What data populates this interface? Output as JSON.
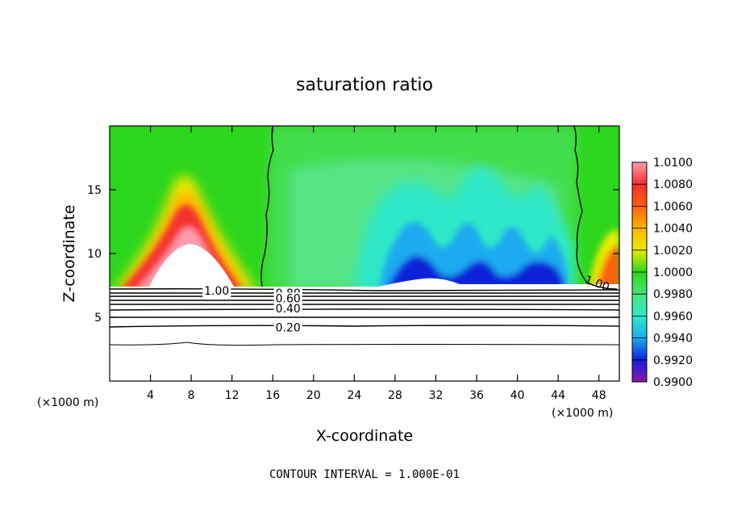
{
  "chart_data": {
    "type": "heatmap",
    "title": "saturation ratio",
    "xlabel": "X-coordinate",
    "ylabel": "Z-coordinate",
    "x_unit": "(×1000 m)",
    "x_unit_right": "(×1000 m)",
    "xlim": [
      0,
      50
    ],
    "ylim": [
      0,
      20
    ],
    "x_ticks": [
      {
        "value": 4,
        "label": "4"
      },
      {
        "value": 8,
        "label": "8"
      },
      {
        "value": 12,
        "label": "12"
      },
      {
        "value": 16,
        "label": "16"
      },
      {
        "value": 20,
        "label": "20"
      },
      {
        "value": 24,
        "label": "24"
      },
      {
        "value": 28,
        "label": "28"
      },
      {
        "value": 32,
        "label": "32"
      },
      {
        "value": 36,
        "label": "36"
      },
      {
        "value": 40,
        "label": "40"
      },
      {
        "value": 44,
        "label": "44"
      },
      {
        "value": 48,
        "label": "48"
      }
    ],
    "y_ticks": [
      {
        "value": 5,
        "label": "5"
      },
      {
        "value": 10,
        "label": "10"
      },
      {
        "value": 15,
        "label": "15"
      }
    ],
    "colorbar": {
      "min": 0.99,
      "max": 1.01,
      "labels": [
        "1.0100",
        "1.0080",
        "1.0060",
        "1.0040",
        "1.0020",
        "1.0000",
        "0.9980",
        "0.9960",
        "0.9940",
        "0.9920",
        "0.9900"
      ],
      "colors": [
        "#ff9cae",
        "#f43030",
        "#fa6010",
        "#ffb400",
        "#eaeb00",
        "#2cd61c",
        "#48e47a",
        "#2ee9c8",
        "#1eaaf0",
        "#1020d8",
        "#8a18aa"
      ]
    },
    "contour_labels": [
      {
        "label": "1.00",
        "x": 10.5,
        "z": 7.1
      },
      {
        "label": "0.80",
        "x": 17.5,
        "z": 6.9
      },
      {
        "label": "0.60",
        "x": 17.5,
        "z": 6.5
      },
      {
        "label": "0.40",
        "x": 17.5,
        "z": 5.7
      },
      {
        "label": "0.20",
        "x": 17.5,
        "z": 4.2
      },
      {
        "label": "1.00",
        "x": 47.7,
        "z": 7.7
      }
    ],
    "contour_interval": "CONTOUR INTERVAL = 1.000E-01"
  }
}
